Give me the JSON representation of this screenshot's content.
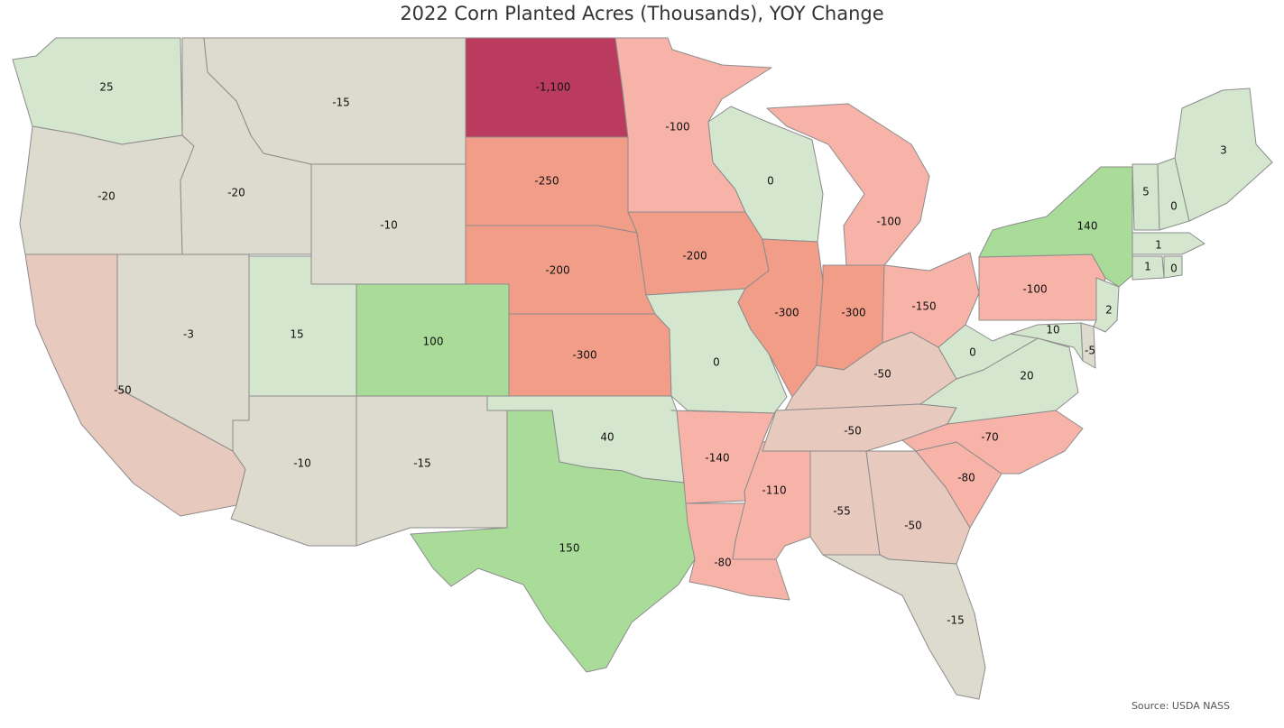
{
  "title": "2022 Corn Planted Acres (Thousands), YOY Change",
  "source": "Source: USDA NASS",
  "colors": {
    "strong_positive": "#a8dc98",
    "mild_positive": "#d5e6cf",
    "neutral": "#dcdbcd",
    "mild_negative": "#e8c9bd",
    "moderate_negative": "#f7b3a7",
    "strong_negative": "#f29d87",
    "extreme_negative": "#bb3b5f"
  },
  "map_data": {
    "units": "Thousand acres, YOY change",
    "states": [
      {
        "code": "WA",
        "value": "25"
      },
      {
        "code": "OR",
        "value": "-20"
      },
      {
        "code": "CA",
        "value": "-50"
      },
      {
        "code": "ID",
        "value": "-20"
      },
      {
        "code": "NV",
        "value": "-3"
      },
      {
        "code": "MT",
        "value": "-15"
      },
      {
        "code": "WY",
        "value": "-10"
      },
      {
        "code": "UT",
        "value": "15"
      },
      {
        "code": "CO",
        "value": "100"
      },
      {
        "code": "AZ",
        "value": "-10"
      },
      {
        "code": "NM",
        "value": "-15"
      },
      {
        "code": "ND",
        "value": "-1,100"
      },
      {
        "code": "SD",
        "value": "-250"
      },
      {
        "code": "NE",
        "value": "-200"
      },
      {
        "code": "KS",
        "value": "-300"
      },
      {
        "code": "OK",
        "value": "40"
      },
      {
        "code": "TX",
        "value": "150"
      },
      {
        "code": "MN",
        "value": "-100"
      },
      {
        "code": "IA",
        "value": "-200"
      },
      {
        "code": "MO",
        "value": "0"
      },
      {
        "code": "AR",
        "value": "-140"
      },
      {
        "code": "LA",
        "value": "-80"
      },
      {
        "code": "WI",
        "value": "0"
      },
      {
        "code": "IL",
        "value": "-300"
      },
      {
        "code": "MS",
        "value": "-110"
      },
      {
        "code": "MI",
        "value": "-100"
      },
      {
        "code": "IN",
        "value": "-300"
      },
      {
        "code": "KY",
        "value": "-50"
      },
      {
        "code": "TN",
        "value": "-50"
      },
      {
        "code": "AL",
        "value": "-55"
      },
      {
        "code": "OH",
        "value": "-150"
      },
      {
        "code": "GA",
        "value": "-50"
      },
      {
        "code": "FL",
        "value": "-15"
      },
      {
        "code": "SC",
        "value": "-80"
      },
      {
        "code": "NC",
        "value": "-70"
      },
      {
        "code": "VA",
        "value": "20"
      },
      {
        "code": "WV",
        "value": "0"
      },
      {
        "code": "PA",
        "value": "-100"
      },
      {
        "code": "NY",
        "value": "140"
      },
      {
        "code": "MD",
        "value": "10"
      },
      {
        "code": "DE",
        "value": "-5"
      },
      {
        "code": "NJ",
        "value": "2"
      },
      {
        "code": "VT",
        "value": "5"
      },
      {
        "code": "NH",
        "value": "0"
      },
      {
        "code": "ME",
        "value": "3"
      },
      {
        "code": "MA",
        "value": "1"
      },
      {
        "code": "CT",
        "value": "1"
      },
      {
        "code": "RI",
        "value": "0"
      }
    ]
  }
}
